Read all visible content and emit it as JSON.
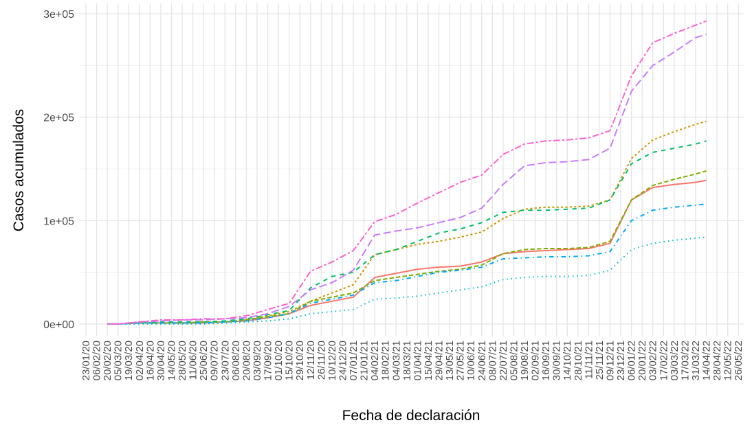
{
  "chart_data": {
    "type": "line",
    "ylabel": "Casos acumulados",
    "xlabel": "Fecha de declaración",
    "x": [
      "20/02/20",
      "05/03/20",
      "02/04/20",
      "30/04/20",
      "28/05/20",
      "25/06/20",
      "23/07/20",
      "20/08/20",
      "17/09/20",
      "15/10/20",
      "12/11/20",
      "10/12/20",
      "07/01/21",
      "04/02/21",
      "04/03/21",
      "01/04/21",
      "29/04/21",
      "27/05/21",
      "24/06/21",
      "22/07/21",
      "19/08/21",
      "16/09/21",
      "14/10/21",
      "11/11/21",
      "09/12/21",
      "06/01/22",
      "03/02/22",
      "03/03/22",
      "31/03/22",
      "14/04/22"
    ],
    "series": [
      {
        "color": "#F8766D",
        "linetype": "solid",
        "values": [
          0,
          0,
          1000,
          1000,
          1000,
          1000,
          2000,
          3000,
          6000,
          10000,
          18000,
          22000,
          26000,
          45000,
          49000,
          53000,
          55000,
          56000,
          60000,
          68000,
          70000,
          71000,
          72000,
          73000,
          78000,
          120000,
          132000,
          135000,
          137000,
          139000
        ]
      },
      {
        "color": "#CD9600",
        "linetype": "22",
        "values": [
          0,
          0,
          1000,
          1000,
          1000,
          2000,
          2000,
          4000,
          8000,
          12000,
          22000,
          30000,
          38000,
          67000,
          72000,
          77000,
          80000,
          84000,
          89000,
          102000,
          111000,
          113000,
          113000,
          114000,
          120000,
          160000,
          178000,
          186000,
          193000,
          196000
        ]
      },
      {
        "color": "#7CAE00",
        "linetype": "42",
        "values": [
          0,
          0,
          1000,
          1000,
          1000,
          2000,
          2000,
          4000,
          7000,
          10000,
          22000,
          26000,
          30000,
          42000,
          45000,
          48000,
          51000,
          53000,
          57000,
          68000,
          72000,
          73000,
          73000,
          74000,
          80000,
          120000,
          134000,
          140000,
          145000,
          148000
        ]
      },
      {
        "color": "#00BE67",
        "linetype": "44",
        "values": [
          0,
          0,
          1000,
          2000,
          2000,
          2000,
          3000,
          5000,
          9000,
          13000,
          35000,
          46000,
          50000,
          67000,
          72000,
          80000,
          88000,
          92000,
          98000,
          108000,
          110000,
          110000,
          111000,
          112000,
          120000,
          155000,
          166000,
          170000,
          174000,
          177000
        ]
      },
      {
        "color": "#00BFC4",
        "linetype": "13",
        "values": [
          0,
          0,
          0,
          0,
          0,
          0,
          1000,
          2000,
          3000,
          5000,
          10000,
          12000,
          14000,
          24000,
          25000,
          27000,
          30000,
          33000,
          36000,
          43000,
          45000,
          46000,
          46000,
          47000,
          52000,
          72000,
          78000,
          81000,
          83000,
          84000
        ]
      },
      {
        "color": "#00A9FF",
        "linetype": "1343",
        "values": [
          0,
          0,
          1000,
          1000,
          1000,
          1000,
          2000,
          3000,
          6000,
          10000,
          20000,
          24000,
          28000,
          40000,
          42000,
          46000,
          50000,
          52000,
          55000,
          63000,
          64000,
          65000,
          65000,
          66000,
          70000,
          100000,
          110000,
          113000,
          115000,
          116000
        ]
      },
      {
        "color": "#C77CFF",
        "linetype": "73",
        "values": [
          0,
          0,
          2000,
          3000,
          4000,
          4000,
          5000,
          6000,
          10000,
          17000,
          33000,
          40000,
          52000,
          86000,
          90000,
          93000,
          98000,
          103000,
          112000,
          135000,
          153000,
          156000,
          157000,
          159000,
          170000,
          225000,
          250000,
          263000,
          277000,
          280000
        ]
      },
      {
        "color": "#FF61CC",
        "linetype": "2262",
        "values": [
          0,
          0,
          2000,
          4000,
          4000,
          5000,
          5000,
          8000,
          14000,
          20000,
          51000,
          60000,
          71000,
          99000,
          106000,
          117000,
          127000,
          137000,
          144000,
          164000,
          174000,
          177000,
          178000,
          180000,
          187000,
          240000,
          272000,
          281000,
          289000,
          293000
        ]
      }
    ],
    "xlim": [
      "14/01/20",
      "02/06/22"
    ],
    "xticks": [
      "23/01/20",
      "06/02/20",
      "20/02/20",
      "05/03/20",
      "19/03/20",
      "02/04/20",
      "16/04/20",
      "30/04/20",
      "14/05/20",
      "28/05/20",
      "11/06/20",
      "25/06/20",
      "09/07/20",
      "23/07/20",
      "06/08/20",
      "20/08/20",
      "03/09/20",
      "17/09/20",
      "01/10/20",
      "15/10/20",
      "29/10/20",
      "12/11/20",
      "26/11/20",
      "10/12/20",
      "24/12/20",
      "07/01/21",
      "21/01/21",
      "04/02/21",
      "18/02/21",
      "04/03/21",
      "18/03/21",
      "01/04/21",
      "15/04/21",
      "29/04/21",
      "13/05/21",
      "27/05/21",
      "10/06/21",
      "24/06/21",
      "08/07/21",
      "22/07/21",
      "05/08/21",
      "19/08/21",
      "02/09/21",
      "16/09/21",
      "30/09/21",
      "14/10/21",
      "28/10/21",
      "11/11/21",
      "25/11/21",
      "09/12/21",
      "23/12/21",
      "06/01/22",
      "20/01/22",
      "03/02/22",
      "17/02/22",
      "03/03/22",
      "17/03/22",
      "31/03/22",
      "14/04/22",
      "28/04/22",
      "12/05/22",
      "26/05/22"
    ],
    "ylim": [
      -12000,
      310000
    ],
    "yticks": [
      {
        "value": 0,
        "label": "0e+00"
      },
      {
        "value": 100000,
        "label": "1e+05"
      },
      {
        "value": 200000,
        "label": "2e+05"
      },
      {
        "value": 300000,
        "label": "3e+05"
      }
    ],
    "yminor": [
      50000,
      150000,
      250000
    ],
    "grid": true
  }
}
